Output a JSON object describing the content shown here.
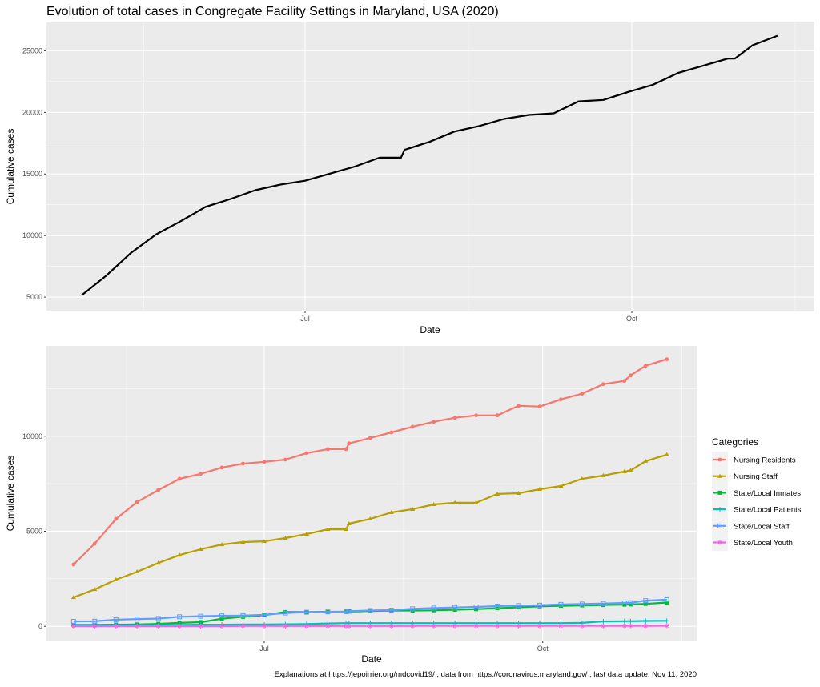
{
  "chart_data": [
    {
      "type": "line",
      "title": "Evolution of total cases in Congregate Facility Settings in Maryland, USA (2020)",
      "xlabel": "Date",
      "ylabel": "Cumulative cases",
      "x_ticks": [
        {
          "date": "2020-07-01",
          "label": "Jul"
        },
        {
          "date": "2020-10-01",
          "label": "Oct"
        }
      ],
      "y_ticks": [
        5000,
        10000,
        15000,
        20000,
        25000
      ],
      "y_tick_labels": [
        "5000",
        "10000",
        "15000",
        "20000",
        "25000"
      ],
      "ylim": [
        3900,
        27300
      ],
      "grid": true,
      "color": "#000000",
      "x": [
        "2020-04-29",
        "2020-05-06",
        "2020-05-13",
        "2020-05-20",
        "2020-05-27",
        "2020-06-03",
        "2020-06-10",
        "2020-06-17",
        "2020-06-24",
        "2020-07-01",
        "2020-07-08",
        "2020-07-15",
        "2020-07-22",
        "2020-07-28",
        "2020-07-29",
        "2020-08-05",
        "2020-08-12",
        "2020-08-19",
        "2020-08-26",
        "2020-09-02",
        "2020-09-09",
        "2020-09-16",
        "2020-09-23",
        "2020-09-30",
        "2020-10-07",
        "2020-10-14",
        "2020-10-21",
        "2020-10-28",
        "2020-10-30",
        "2020-11-04",
        "2020-11-11"
      ],
      "values": [
        5130,
        6740,
        8600,
        10080,
        11170,
        12330,
        12970,
        13680,
        14130,
        14450,
        15030,
        15600,
        16320,
        16320,
        16960,
        17600,
        18440,
        18890,
        19470,
        19790,
        19920,
        20890,
        21010,
        21660,
        22240,
        23200,
        23780,
        24360,
        24360,
        25450,
        26220
      ]
    },
    {
      "type": "line",
      "xlabel": "Date",
      "ylabel": "Cumulative cases",
      "legend_title": "Categories",
      "legend_position": "right",
      "x_ticks": [
        {
          "date": "2020-07-01",
          "label": "Jul"
        },
        {
          "date": "2020-10-01",
          "label": "Oct"
        }
      ],
      "y_ticks": [
        0,
        5000,
        10000
      ],
      "y_tick_labels": [
        "0",
        "5000",
        "10000"
      ],
      "ylim": [
        -750,
        14750
      ],
      "grid": true,
      "x": [
        "2020-04-29",
        "2020-05-06",
        "2020-05-13",
        "2020-05-20",
        "2020-05-27",
        "2020-06-03",
        "2020-06-10",
        "2020-06-17",
        "2020-06-24",
        "2020-07-01",
        "2020-07-08",
        "2020-07-15",
        "2020-07-22",
        "2020-07-28",
        "2020-07-29",
        "2020-08-05",
        "2020-08-12",
        "2020-08-19",
        "2020-08-26",
        "2020-09-02",
        "2020-09-09",
        "2020-09-16",
        "2020-09-23",
        "2020-09-30",
        "2020-10-07",
        "2020-10-14",
        "2020-10-21",
        "2020-10-28",
        "2020-10-30",
        "2020-11-04",
        "2020-11-11"
      ],
      "series": [
        {
          "name": "Nursing Residents",
          "color": "#F8766D",
          "marker": "circle",
          "values": [
            3250,
            4350,
            5650,
            6540,
            7170,
            7760,
            8020,
            8350,
            8560,
            8650,
            8770,
            9110,
            9320,
            9320,
            9620,
            9910,
            10200,
            10500,
            10760,
            10970,
            11100,
            11100,
            11600,
            11560,
            11940,
            12240,
            12740,
            12910,
            13200,
            13710,
            14050
          ]
        },
        {
          "name": "Nursing Staff",
          "color": "#B79F00",
          "marker": "triangle",
          "values": [
            1520,
            1940,
            2450,
            2870,
            3330,
            3750,
            4050,
            4300,
            4430,
            4470,
            4640,
            4850,
            5100,
            5100,
            5400,
            5650,
            5990,
            6160,
            6410,
            6500,
            6500,
            6960,
            7000,
            7210,
            7380,
            7760,
            7930,
            8140,
            8200,
            8690,
            9030
          ]
        },
        {
          "name": "State/Local Inmates",
          "color": "#00BA38",
          "marker": "square",
          "values": [
            80,
            80,
            90,
            100,
            130,
            180,
            220,
            400,
            500,
            580,
            750,
            750,
            760,
            760,
            770,
            800,
            820,
            830,
            840,
            870,
            900,
            950,
            1000,
            1050,
            1080,
            1100,
            1120,
            1140,
            1150,
            1180,
            1250
          ]
        },
        {
          "name": "State/Local Patients",
          "color": "#00BFC4",
          "marker": "plus",
          "values": [
            50,
            50,
            60,
            60,
            70,
            80,
            90,
            90,
            100,
            100,
            110,
            120,
            150,
            170,
            170,
            170,
            170,
            170,
            170,
            170,
            170,
            170,
            170,
            170,
            170,
            180,
            260,
            270,
            270,
            280,
            290
          ]
        },
        {
          "name": "State/Local Staff",
          "color": "#619CFF",
          "marker": "square-open",
          "values": [
            260,
            270,
            350,
            380,
            410,
            500,
            530,
            550,
            560,
            600,
            700,
            740,
            760,
            770,
            790,
            830,
            850,
            920,
            960,
            990,
            1020,
            1060,
            1090,
            1110,
            1150,
            1170,
            1200,
            1230,
            1240,
            1350,
            1400
          ]
        },
        {
          "name": "State/Local Youth",
          "color": "#F564E3",
          "marker": "asterisk",
          "values": [
            10,
            10,
            10,
            10,
            10,
            10,
            10,
            10,
            15,
            15,
            15,
            15,
            15,
            15,
            15,
            15,
            15,
            20,
            20,
            20,
            20,
            20,
            20,
            20,
            20,
            20,
            20,
            25,
            25,
            25,
            30
          ]
        }
      ]
    }
  ],
  "footer": "Explanations at https://jepoirrier.org/mdcovid19/ ; data from https://coronavirus.maryland.gov/ ; last data update: Nov 11, 2020"
}
